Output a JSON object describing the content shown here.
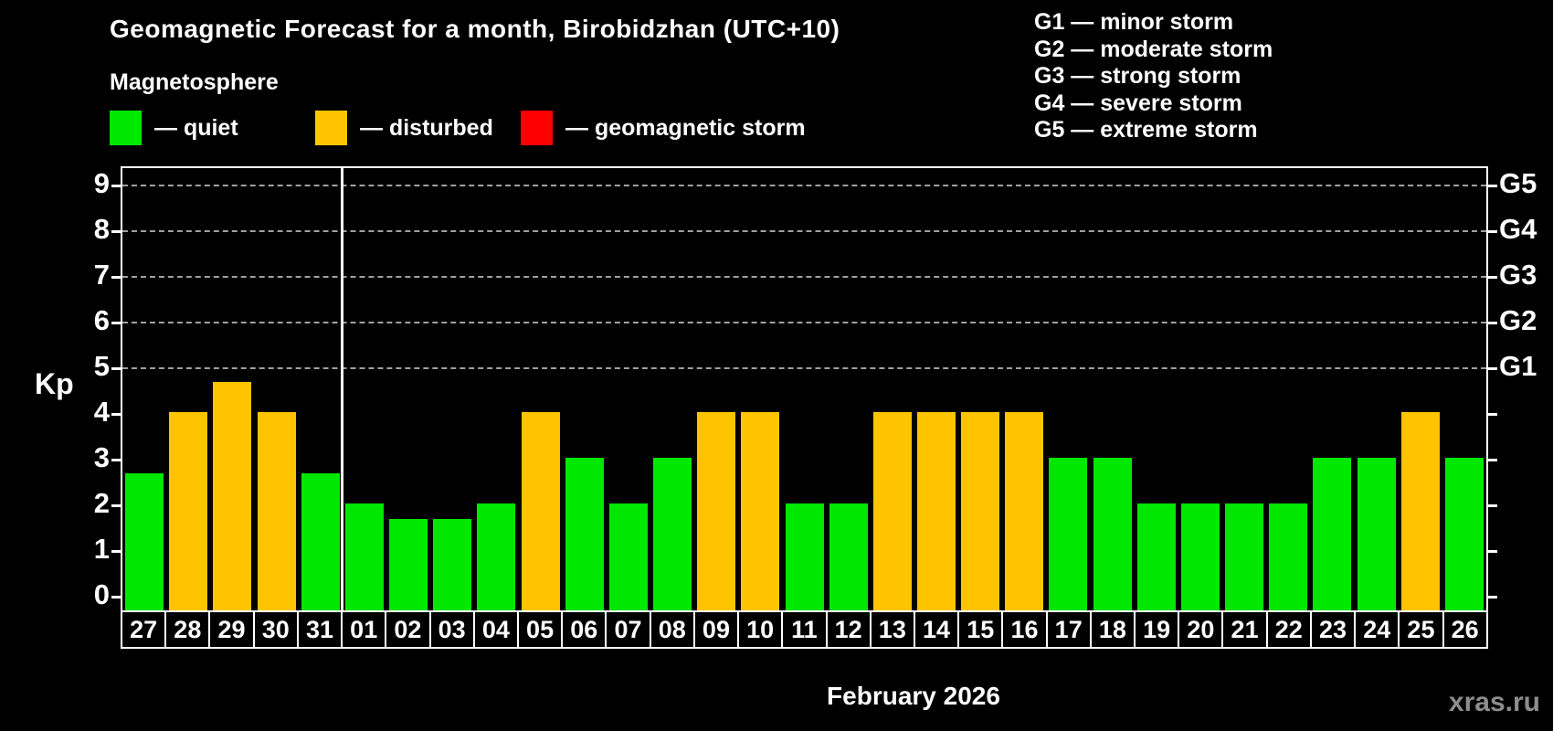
{
  "title": "Geomagnetic Forecast for a month, Birobidzhan (UTC+10)",
  "subtitle": "Magnetosphere",
  "watermark": "xras.ru",
  "legend": [
    {
      "name": "quiet",
      "label": "— quiet",
      "color": "#00e800",
      "x": 120
    },
    {
      "name": "disturbed",
      "label": "— disturbed",
      "color": "#ffc400",
      "x": 345
    },
    {
      "name": "storm",
      "label": "— geomagnetic storm",
      "color": "#ff0000",
      "x": 570
    }
  ],
  "storm_scale_legend": [
    "G1 — minor storm",
    "G2 — moderate storm",
    "G3 — strong storm",
    "G4 — severe storm",
    "G5 — extreme storm"
  ],
  "chart_data": {
    "type": "bar",
    "title": "Geomagnetic Forecast for a month, Birobidzhan (UTC+10)",
    "subtitle": "Magnetosphere",
    "xlabel": "February 2026",
    "ylabel": "Kp",
    "ylim": [
      0,
      9
    ],
    "y_ticks": [
      0,
      1,
      2,
      3,
      4,
      5,
      6,
      7,
      8,
      9
    ],
    "gridlines_at": [
      5,
      6,
      7,
      8,
      9
    ],
    "grid_style": "dashed",
    "legend_position": "top",
    "right_axis": [
      {
        "kp": 5,
        "label": "G1"
      },
      {
        "kp": 6,
        "label": "G2"
      },
      {
        "kp": 7,
        "label": "G3"
      },
      {
        "kp": 8,
        "label": "G4"
      },
      {
        "kp": 9,
        "label": "G5"
      }
    ],
    "status_colors": {
      "quiet": "#00e800",
      "disturbed": "#ffc400",
      "storm": "#ff0000"
    },
    "month_separator_after_index": 4,
    "series": [
      {
        "day": "27",
        "value": 2.67,
        "status": "quiet"
      },
      {
        "day": "28",
        "value": 4,
        "status": "disturbed"
      },
      {
        "day": "29",
        "value": 4.67,
        "status": "disturbed"
      },
      {
        "day": "30",
        "value": 4,
        "status": "disturbed"
      },
      {
        "day": "31",
        "value": 2.67,
        "status": "quiet"
      },
      {
        "day": "01",
        "value": 2,
        "status": "quiet"
      },
      {
        "day": "02",
        "value": 1.67,
        "status": "quiet"
      },
      {
        "day": "03",
        "value": 1.67,
        "status": "quiet"
      },
      {
        "day": "04",
        "value": 2,
        "status": "quiet"
      },
      {
        "day": "05",
        "value": 4,
        "status": "disturbed"
      },
      {
        "day": "06",
        "value": 3,
        "status": "quiet"
      },
      {
        "day": "07",
        "value": 2,
        "status": "quiet"
      },
      {
        "day": "08",
        "value": 3,
        "status": "quiet"
      },
      {
        "day": "09",
        "value": 4,
        "status": "disturbed"
      },
      {
        "day": "10",
        "value": 4,
        "status": "disturbed"
      },
      {
        "day": "11",
        "value": 2,
        "status": "quiet"
      },
      {
        "day": "12",
        "value": 2,
        "status": "quiet"
      },
      {
        "day": "13",
        "value": 4,
        "status": "disturbed"
      },
      {
        "day": "14",
        "value": 4,
        "status": "disturbed"
      },
      {
        "day": "15",
        "value": 4,
        "status": "disturbed"
      },
      {
        "day": "16",
        "value": 4,
        "status": "disturbed"
      },
      {
        "day": "17",
        "value": 3,
        "status": "quiet"
      },
      {
        "day": "18",
        "value": 3,
        "status": "quiet"
      },
      {
        "day": "19",
        "value": 2,
        "status": "quiet"
      },
      {
        "day": "20",
        "value": 2,
        "status": "quiet"
      },
      {
        "day": "21",
        "value": 2,
        "status": "quiet"
      },
      {
        "day": "22",
        "value": 2,
        "status": "quiet"
      },
      {
        "day": "23",
        "value": 3,
        "status": "quiet"
      },
      {
        "day": "24",
        "value": 3,
        "status": "quiet"
      },
      {
        "day": "25",
        "value": 4,
        "status": "disturbed"
      },
      {
        "day": "26",
        "value": 3,
        "status": "quiet"
      }
    ]
  }
}
